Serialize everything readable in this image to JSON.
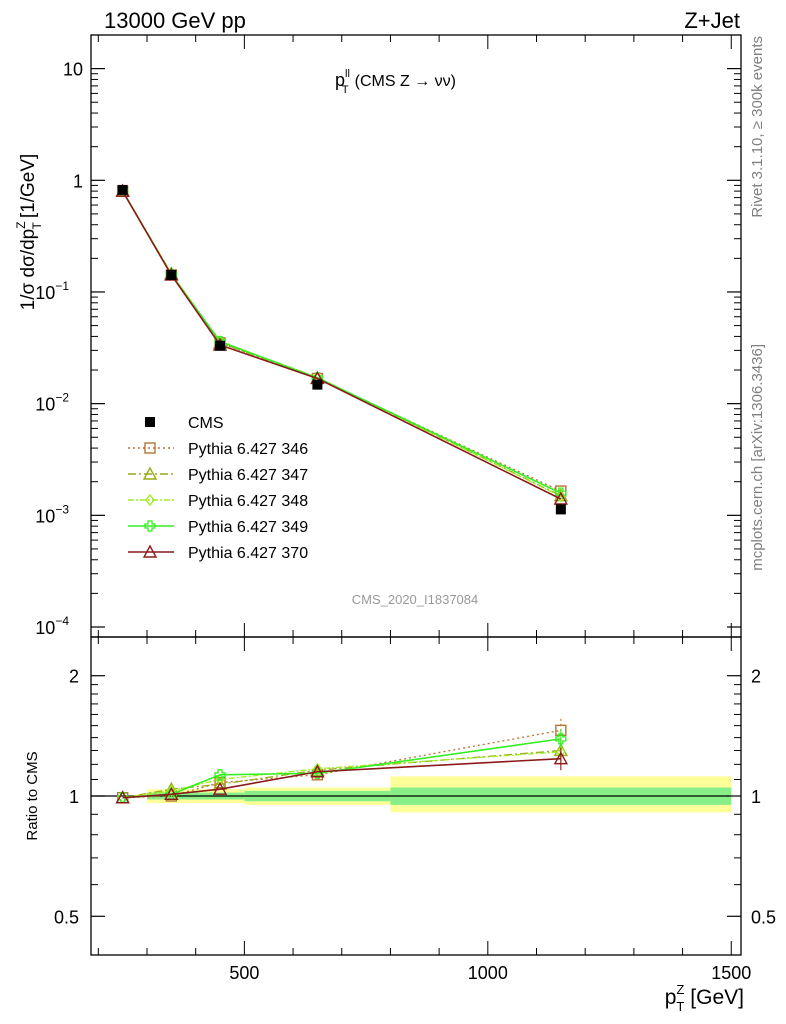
{
  "header": {
    "left": "13000 GeV pp",
    "right": "Z+Jet",
    "side_top": "Rivet 3.1.10, ≥ 300k events",
    "side_bottom": "mcplots.cern.ch [arXiv:1306.3436]",
    "analysis_id": "CMS_2020_I1837084"
  },
  "chart_data": [
    {
      "type": "line",
      "title_main": "p",
      "title_sup": "ll",
      "title_sub": "T",
      "title_rest": "(CMS Z → νν)",
      "ylabel": "1/σ dσ/dp",
      "ylabel_sup": "Z",
      "ylabel_sub": "T",
      "ylabel_unit": "[1/GeV]",
      "yscale": "log",
      "ylim": [
        0.0001,
        20
      ],
      "xlim": [
        185,
        1520
      ],
      "y_ticks": [
        {
          "value": 0.0001,
          "base": "10",
          "exp": "−4"
        },
        {
          "value": 0.001,
          "base": "10",
          "exp": "−3"
        },
        {
          "value": 0.01,
          "base": "10",
          "exp": "−2"
        },
        {
          "value": 0.1,
          "base": "10",
          "exp": "−1"
        },
        {
          "value": 1,
          "base": "1",
          "exp": ""
        },
        {
          "value": 10,
          "base": "10",
          "exp": ""
        }
      ],
      "x": [
        250,
        350,
        450,
        650,
        1150
      ],
      "legend_placement": "lower-left",
      "data": {
        "name": "CMS",
        "values": [
          0.82,
          0.142,
          0.033,
          0.0148,
          0.00113
        ]
      },
      "series": [
        {
          "name": "Pythia 6.427 346",
          "color": "#b87333",
          "marker": "square",
          "dash": "dotted",
          "values": [
            0.8,
            0.142,
            0.035,
            0.0168,
            0.00165
          ]
        },
        {
          "name": "Pythia 6.427 347",
          "color": "#9aaa1a",
          "marker": "triangle",
          "dash": "dashdot",
          "values": [
            0.8,
            0.146,
            0.035,
            0.017,
            0.0015
          ]
        },
        {
          "name": "Pythia 6.427 348",
          "color": "#a0ee20",
          "marker": "diamond",
          "dash": "dashdot2",
          "values": [
            0.8,
            0.146,
            0.036,
            0.0172,
            0.00148
          ]
        },
        {
          "name": "Pythia 6.427 349",
          "color": "#33ee22",
          "marker": "cross",
          "dash": "solid",
          "values": [
            0.8,
            0.143,
            0.036,
            0.017,
            0.00158
          ]
        },
        {
          "name": "Pythia 6.427 370",
          "color": "#8b1a1a",
          "marker": "triangle",
          "dash": "solid",
          "values": [
            0.8,
            0.142,
            0.0335,
            0.0168,
            0.0014
          ]
        }
      ]
    },
    {
      "type": "line",
      "ylabel": "Ratio to CMS",
      "xlabel": "p",
      "xlabel_sup": "Z",
      "xlabel_sub": "T",
      "xlabel_unit": "[GeV]",
      "yscale": "log",
      "ylim": [
        0.4,
        2.5
      ],
      "y_ticks": [
        0.5,
        1,
        2
      ],
      "x_ticks": [
        500,
        1000,
        1500
      ],
      "uncertainty_bands": [
        {
          "x_range": [
            300,
            500
          ],
          "inner": [
            0.98,
            1.02
          ],
          "outer": [
            0.96,
            1.04
          ]
        },
        {
          "x_range": [
            500,
            800
          ],
          "inner": [
            0.97,
            1.03
          ],
          "outer": [
            0.95,
            1.05
          ]
        },
        {
          "x_range": [
            800,
            1500
          ],
          "inner": [
            0.95,
            1.05
          ],
          "outer": [
            0.91,
            1.12
          ]
        }
      ],
      "series": [
        {
          "name": "Pythia 6.427 346",
          "values": [
            0.99,
            1.0,
            1.08,
            1.13,
            1.46
          ],
          "err_hi": 0.1,
          "err_lo": 0.18
        },
        {
          "name": "Pythia 6.427 347",
          "values": [
            0.99,
            1.04,
            1.07,
            1.16,
            1.3
          ]
        },
        {
          "name": "Pythia 6.427 348",
          "values": [
            0.99,
            1.03,
            1.1,
            1.17,
            1.29
          ]
        },
        {
          "name": "Pythia 6.427 349",
          "values": [
            0.99,
            1.01,
            1.13,
            1.14,
            1.39
          ]
        },
        {
          "name": "Pythia 6.427 370",
          "values": [
            0.99,
            1.01,
            1.04,
            1.15,
            1.24
          ]
        }
      ]
    }
  ]
}
